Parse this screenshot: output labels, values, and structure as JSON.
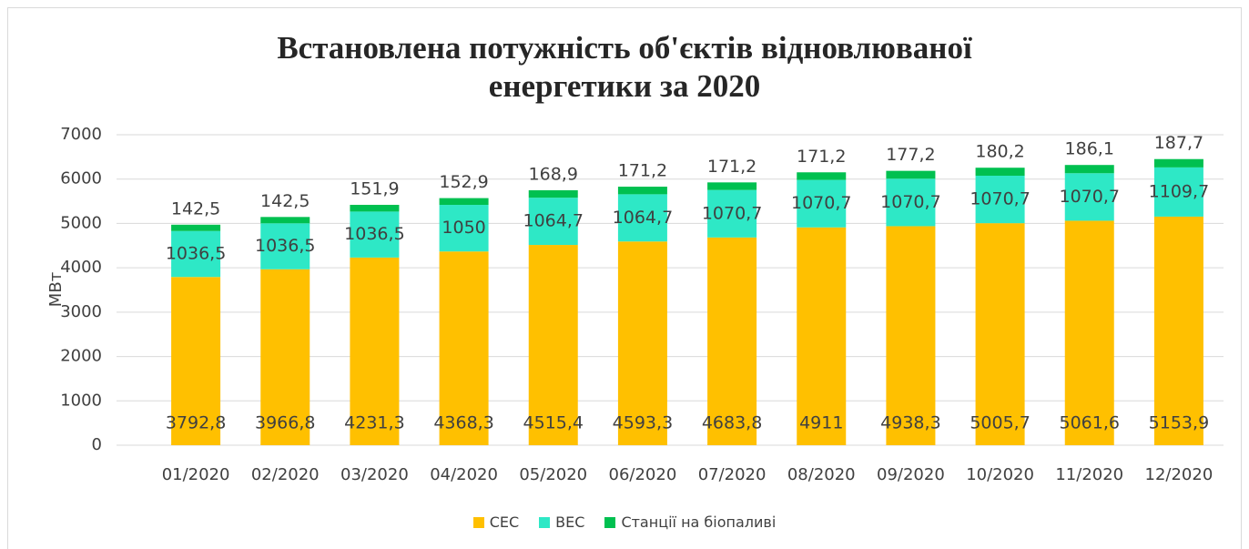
{
  "chart_data": {
    "type": "stacked_bar",
    "title": "Встановлена потужність об'єктів відновлюваної енергетики за 2020",
    "y_label": "МВт",
    "categories": [
      "01/2020",
      "02/2020",
      "03/2020",
      "04/2020",
      "05/2020",
      "06/2020",
      "07/2020",
      "08/2020",
      "09/2020",
      "10/2020",
      "11/2020",
      "12/2020"
    ],
    "series": [
      {
        "name": "СЕС",
        "color": "#ffc000",
        "values": [
          3792.8,
          3966.8,
          4231.3,
          4368.3,
          4515.4,
          4593.3,
          4683.8,
          4911,
          4938.3,
          5005.7,
          5061.6,
          5153.9
        ],
        "value_labels": [
          "3792,8",
          "3966,8",
          "4231,3",
          "4368,3",
          "4515,4",
          "4593,3",
          "4683,8",
          "4911",
          "4938,3",
          "5005,7",
          "5061,6",
          "5153,9"
        ]
      },
      {
        "name": "ВЕС",
        "color": "#2ee8c6",
        "values": [
          1036.5,
          1036.5,
          1036.5,
          1050,
          1064.7,
          1064.7,
          1070.7,
          1070.7,
          1070.7,
          1070.7,
          1070.7,
          1109.7
        ],
        "value_labels": [
          "1036,5",
          "1036,5",
          "1036,5",
          "1050",
          "1064,7",
          "1064,7",
          "1070,7",
          "1070,7",
          "1070,7",
          "1070,7",
          "1070,7",
          "1109,7"
        ]
      },
      {
        "name": "Станції на біопаливі",
        "color": "#00c050",
        "values": [
          142.5,
          142.5,
          151.9,
          152.9,
          168.9,
          171.2,
          171.2,
          171.2,
          177.2,
          180.2,
          186.1,
          187.7
        ],
        "value_labels": [
          "142,5",
          "142,5",
          "151,9",
          "152,9",
          "168,9",
          "171,2",
          "171,2",
          "171,2",
          "177,2",
          "180,2",
          "186,1",
          "187,7"
        ]
      }
    ],
    "ylim": [
      0,
      7000
    ],
    "yticks": [
      0,
      1000,
      2000,
      3000,
      4000,
      5000,
      6000,
      7000
    ],
    "grid": true,
    "legend": "bottom"
  }
}
